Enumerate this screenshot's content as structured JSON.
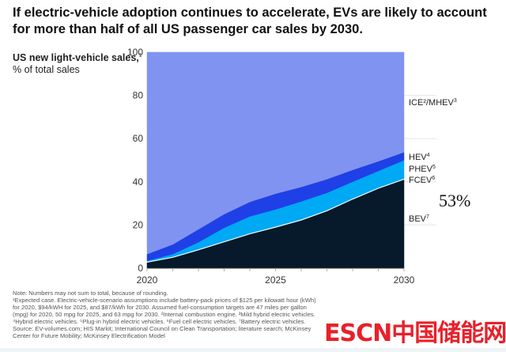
{
  "title": "If electric-vehicle adoption continues to accelerate, EVs are likely to account for more than half of all US passenger car sales by 2030.",
  "ylabel_bold": "US new light-vehicle sales,",
  "ylabel_sup": "1",
  "ylabel_unit": "% of total sales",
  "callout": "53%",
  "notes": [
    "Note: Numbers may not sum to total, because of rounding.",
    "¹Expected case. Electric-vehicle-scenario assumptions include battery-pack prices of $125 per kilowatt hour (kWh) for 2020, $94/kWH for 2025, and $87/kWh for 2030. Assumed fuel-consumption targets are 47 miles per gallon (mpg) for 2020, 50 mpg for 2025, and 63 mpg for 2030. ²Internal combustion engine. ³Mild hybrid electric vehicles. ⁴Hybrid electric vehicles. ⁵Plug-in hybrid electric vehicles. ⁶Fuel cell electric vehicles. ⁷Battery electric vehicles.",
    "Source: EV-volumes.com; HIS Markit; International Council on Clean Transportation; literature search; McKinsey Center for Future Mobility; McKinsey Electrification Model"
  ],
  "watermark": "ESCN中国储能网",
  "chart_data": {
    "type": "area",
    "stacked": true,
    "x": [
      2020,
      2021,
      2022,
      2023,
      2024,
      2025,
      2026,
      2027,
      2028,
      2029,
      2030
    ],
    "xticks": [
      "2020",
      "2025",
      "2030"
    ],
    "yticks": [
      "0",
      "20",
      "40",
      "60",
      "80",
      "100"
    ],
    "ylim": [
      0,
      100
    ],
    "grid": true,
    "series": [
      {
        "name": "BEV",
        "sup": "7",
        "color": "#061a2b",
        "values": [
          2.8,
          5,
          8.5,
          12.2,
          15.9,
          19,
          22.3,
          26.6,
          32,
          37,
          41.2
        ]
      },
      {
        "name": "FCEV",
        "sup": "6",
        "color": "#ffffff",
        "values": [
          0.3,
          0.3,
          0.3,
          0.3,
          0.3,
          0.3,
          0.3,
          0.3,
          0.3,
          0.3,
          0.3
        ]
      },
      {
        "name": "PHEV",
        "sup": "5",
        "color": "#00a9f4",
        "values": [
          0.3,
          1.2,
          3.2,
          6.2,
          7.8,
          7.9,
          8.3,
          8,
          7.7,
          7.7,
          8.5
        ]
      },
      {
        "name": "HEV",
        "sup": "4",
        "color": "#1f40e6",
        "values": [
          3.1,
          4.5,
          6,
          6.3,
          6.7,
          7.3,
          6.7,
          6.3,
          5.5,
          4.5,
          3.7
        ]
      },
      {
        "name": "ICE²/MHEV",
        "sup": "3",
        "color": "#8093f1",
        "values": [
          93.5,
          89,
          82,
          75,
          69.3,
          65.5,
          62.4,
          58.8,
          54.5,
          50.5,
          46.3
        ]
      }
    ]
  }
}
